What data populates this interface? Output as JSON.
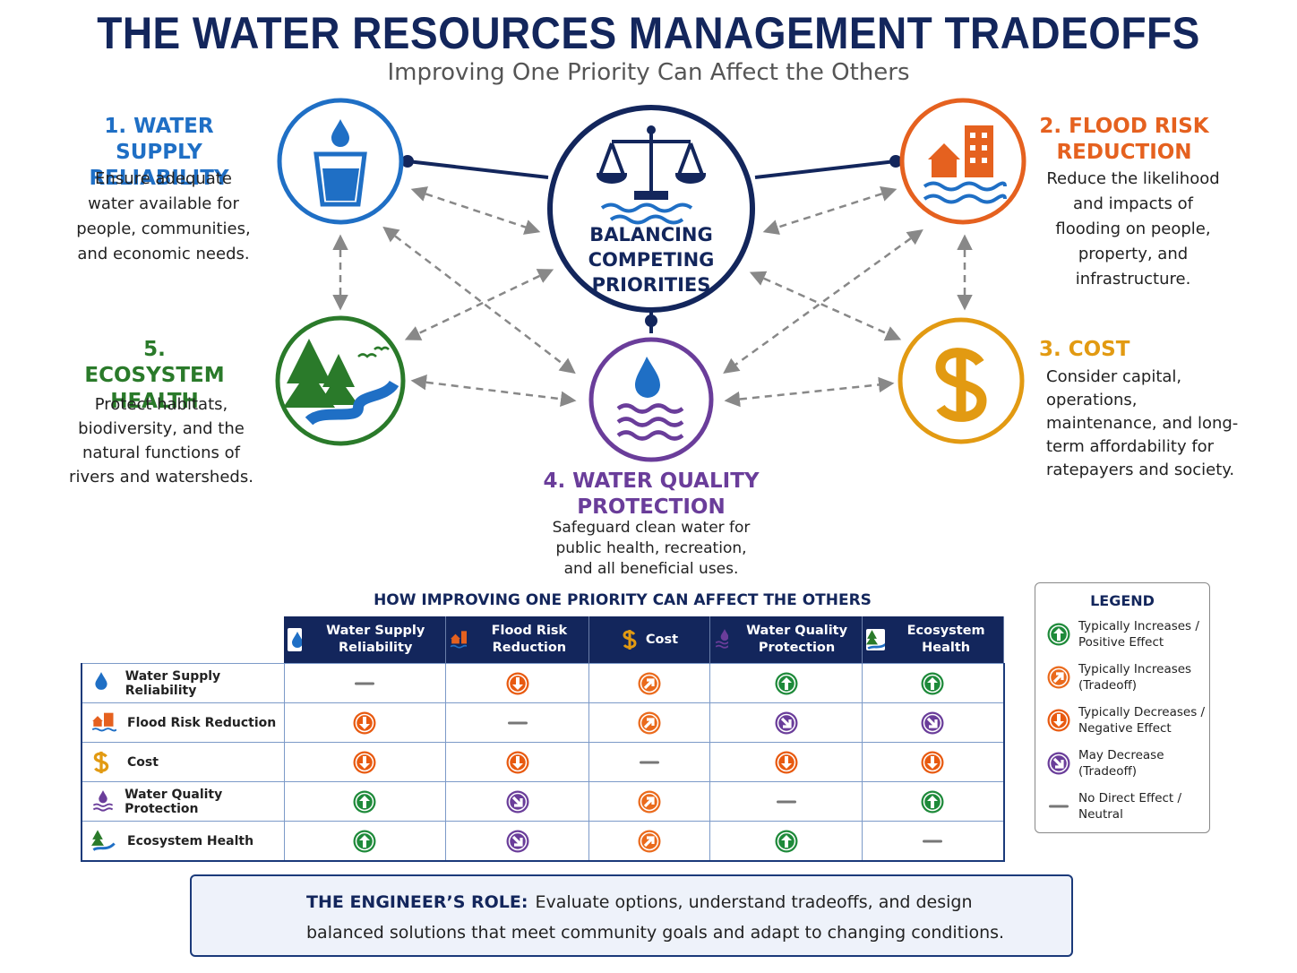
{
  "header": {
    "title": "THE WATER RESOURCES MANAGEMENT TRADEOFFS",
    "subtitle": "Improving One Priority Can Affect the Others"
  },
  "center": {
    "label": "BALANCING COMPETING PRIORITIES"
  },
  "priorities": [
    {
      "label": "1. WATER SUPPLY RELIABILITY",
      "description": "Ensure adequate water available for people, communities, and economic needs."
    },
    {
      "label": "2. FLOOD RISK REDUCTION",
      "description": "Reduce the likelihood and impacts of flooding on people, property, and infrastructure."
    },
    {
      "label": "3. COST",
      "description": "Consider capital, operations, maintenance, and long-term affordability for ratepayers and society."
    },
    {
      "label": "4. WATER QUALITY PROTECTION",
      "description": "Safeguard clean water for public health, recreation, and all beneficial uses."
    },
    {
      "label": "5. ECOSYSTEM HEALTH",
      "description": "Protect habitats, biodiversity, and the natural functions of rivers and watersheds."
    }
  ],
  "table": {
    "title": "HOW IMPROVING ONE PRIORITY CAN AFFECT THE OTHERS",
    "columns": [
      "Water Supply Reliability",
      "Flood Risk Reduction",
      "Cost",
      "Water Quality Protection",
      "Ecosystem Health"
    ],
    "rows": [
      "Water Supply Reliability",
      "Flood Risk Reduction",
      "Cost",
      "Water Quality Protection",
      "Ecosystem Health"
    ]
  },
  "legend": {
    "title": "LEGEND",
    "items": [
      "Typically Increases / Positive Effect",
      "Typically Increases (Tradeoff)",
      "Typically Decreases / Negative Effect",
      "May Decrease (Tradeoff)",
      "No Direct Effect / Neutral"
    ]
  },
  "footer": {
    "heading": "THE ENGINEER’S ROLE:",
    "text": "Evaluate options, understand tradeoffs, and design balanced solutions that meet community goals and adapt to changing conditions."
  }
}
